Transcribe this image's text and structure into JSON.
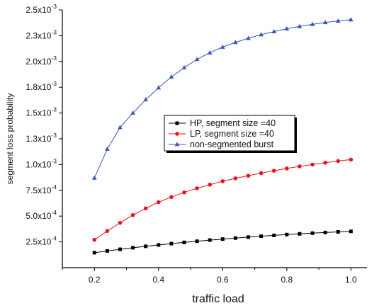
{
  "chart_data": {
    "type": "line",
    "xlabel": "traffic load",
    "ylabel": "segment loss probability",
    "xlim": [
      0.1,
      1.05
    ],
    "ylim": [
      0.0,
      0.0025
    ],
    "x_ticks": [
      0.2,
      0.4,
      0.6,
      0.8,
      1.0
    ],
    "x_tick_labels": [
      "0.2",
      "0.4",
      "0.6",
      "0.8",
      "1.0"
    ],
    "y_ticks": [
      0.00025,
      0.0005,
      0.00075,
      0.001,
      0.00125,
      0.0015,
      0.00175,
      0.002,
      0.00225,
      0.0025
    ],
    "y_tick_labels": [
      {
        "m": "2.5x10",
        "e": "-4"
      },
      {
        "m": "5.0x10",
        "e": "-4"
      },
      {
        "m": "7.5x10",
        "e": "-4"
      },
      {
        "m": "1.0x10",
        "e": "-3"
      },
      {
        "m": "1.3x10",
        "e": "-3"
      },
      {
        "m": "1.5x10",
        "e": "-3"
      },
      {
        "m": "1.8x10",
        "e": "-3"
      },
      {
        "m": "2.0x10",
        "e": "-3"
      },
      {
        "m": "2.3x10",
        "e": "-3"
      },
      {
        "m": "2.5x10",
        "e": "-3"
      }
    ],
    "grid": false,
    "legend_position": "center",
    "x": [
      0.2,
      0.24,
      0.28,
      0.32,
      0.36,
      0.4,
      0.44,
      0.48,
      0.52,
      0.56,
      0.6,
      0.64,
      0.68,
      0.72,
      0.76,
      0.8,
      0.84,
      0.88,
      0.92,
      0.96,
      1.0
    ],
    "series": [
      {
        "name": "HP, segment size =40",
        "color": "#000000",
        "marker": "square",
        "values": [
          0.000145,
          0.000162,
          0.000178,
          0.000193,
          0.000207,
          0.00022,
          0.000233,
          0.000245,
          0.000256,
          0.000267,
          0.000277,
          0.000287,
          0.000296,
          0.000305,
          0.000313,
          0.000321,
          0.000328,
          0.000335,
          0.000341,
          0.000347,
          0.000352
        ]
      },
      {
        "name": "LP, segment size =40",
        "color": "#e8141c",
        "marker": "circle",
        "values": [
          0.00027,
          0.000355,
          0.000435,
          0.00051,
          0.000575,
          0.000635,
          0.000685,
          0.00073,
          0.00077,
          0.000805,
          0.000838,
          0.000866,
          0.000892,
          0.000917,
          0.00094,
          0.000962,
          0.000982,
          0.001,
          0.001018,
          0.001034,
          0.001048
        ]
      },
      {
        "name": "non-segmented burst",
        "color": "#3a56b8",
        "marker": "triangle",
        "values": [
          0.00087,
          0.00115,
          0.00136,
          0.0015,
          0.00163,
          0.001745,
          0.00185,
          0.00194,
          0.00202,
          0.002085,
          0.00214,
          0.002185,
          0.002225,
          0.00226,
          0.00229,
          0.002317,
          0.00234,
          0.00236,
          0.002378,
          0.002393,
          0.002405
        ]
      }
    ]
  }
}
